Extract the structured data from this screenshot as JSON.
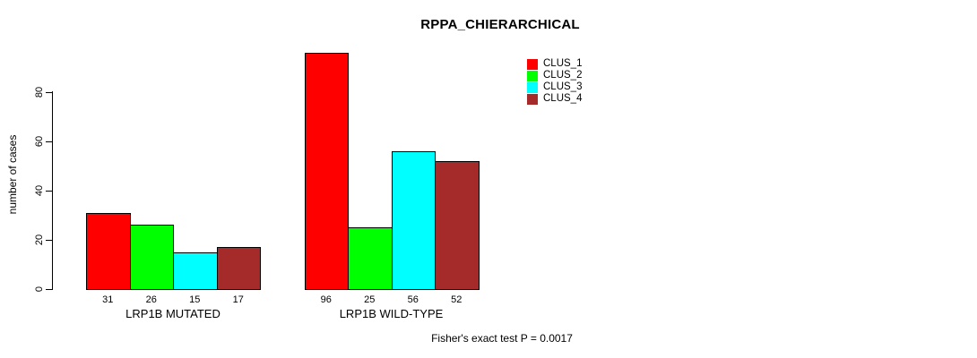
{
  "chart": {
    "title": "RPPA_CHIERARCHICAL",
    "ylabel": "number of cases",
    "footer": "Fisher's exact test P = 0.0017"
  },
  "chart_data": {
    "type": "bar",
    "title": "RPPA_CHIERARCHICAL",
    "xlabel": "",
    "ylabel": "number of cases",
    "categories": [
      "LRP1B MUTATED",
      "LRP1B WILD-TYPE"
    ],
    "series": [
      {
        "name": "CLUS_1",
        "color": "#FF0000",
        "values": [
          31,
          96
        ]
      },
      {
        "name": "CLUS_2",
        "color": "#00FF00",
        "values": [
          26,
          25
        ]
      },
      {
        "name": "CLUS_3",
        "color": "#00FFFF",
        "values": [
          15,
          56
        ]
      },
      {
        "name": "CLUS_4",
        "color": "#A52A2A",
        "values": [
          17,
          52
        ]
      }
    ],
    "y_ticks": [
      0,
      20,
      40,
      60,
      80
    ],
    "ylim": [
      0,
      97
    ],
    "grid": false,
    "legend_position": "top-right",
    "bar_value_labels_shown": true,
    "annotation": "Fisher's exact test P = 0.0017",
    "bar_border_color": "#000000",
    "background": "#FFFFFF"
  }
}
